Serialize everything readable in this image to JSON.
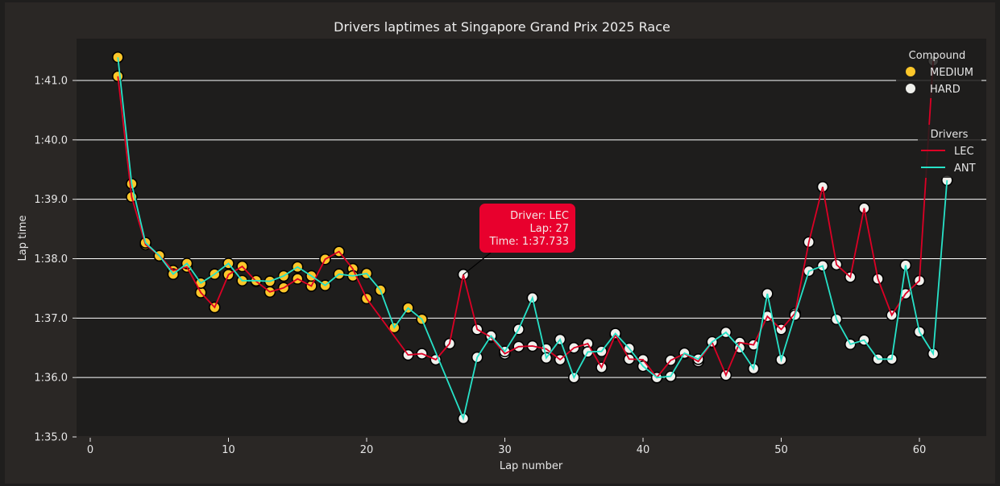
{
  "chart_data": {
    "type": "line",
    "title": "Drivers laptimes at Singapore Grand Prix 2025 Race",
    "xlabel": "Lap number",
    "ylabel": "Lap time",
    "xlim": [
      -1,
      65
    ],
    "ylim": [
      95.0,
      101.6
    ],
    "x_ticks": [
      0,
      10,
      20,
      30,
      40,
      50,
      60
    ],
    "x_tick_labels": [
      "0",
      "10",
      "20",
      "30",
      "40",
      "50",
      "60"
    ],
    "y_ticks": [
      95,
      96,
      97,
      98,
      99,
      100,
      101
    ],
    "y_tick_labels": [
      "1:35.0",
      "1:36.0",
      "1:37.0",
      "1:38.0",
      "1:39.0",
      "1:40.0",
      "1:41.0"
    ],
    "grid": "horizontal",
    "colors": {
      "background": "#282624",
      "axes_background": "#1e1d1c",
      "grid": "#ffffff",
      "text": "#e6e6e6",
      "marker_edge": "#000000"
    },
    "compound_legend": {
      "title": "Compound",
      "placement": "top-right",
      "entries": [
        {
          "label": "MEDIUM",
          "color": "#fcc72a"
        },
        {
          "label": "HARD",
          "color": "#f0f0ec"
        }
      ]
    },
    "drivers_legend": {
      "title": "Drivers",
      "placement": "right",
      "entries": [
        {
          "label": "LEC",
          "color": "#dc0025"
        },
        {
          "label": "ANT",
          "color": "#27e2c8"
        }
      ]
    },
    "series": [
      {
        "name": "LEC",
        "color": "#dc0025",
        "points": [
          {
            "lap": 2,
            "time": 101.07,
            "compound": "MEDIUM"
          },
          {
            "lap": 3,
            "time": 99.04,
            "compound": "MEDIUM"
          },
          {
            "lap": 4,
            "time": 98.24,
            "compound": "MEDIUM"
          },
          {
            "lap": 5,
            "time": 98.05,
            "compound": "MEDIUM"
          },
          {
            "lap": 6,
            "time": 97.8,
            "compound": "MEDIUM"
          },
          {
            "lap": 7,
            "time": 97.86,
            "compound": "MEDIUM"
          },
          {
            "lap": 8,
            "time": 97.43,
            "compound": "MEDIUM"
          },
          {
            "lap": 9,
            "time": 97.18,
            "compound": "MEDIUM"
          },
          {
            "lap": 10,
            "time": 97.73,
            "compound": "MEDIUM"
          },
          {
            "lap": 11,
            "time": 97.87,
            "compound": "MEDIUM"
          },
          {
            "lap": 12,
            "time": 97.62,
            "compound": "MEDIUM"
          },
          {
            "lap": 13,
            "time": 97.44,
            "compound": "MEDIUM"
          },
          {
            "lap": 14,
            "time": 97.51,
            "compound": "MEDIUM"
          },
          {
            "lap": 15,
            "time": 97.66,
            "compound": "MEDIUM"
          },
          {
            "lap": 16,
            "time": 97.54,
            "compound": "MEDIUM"
          },
          {
            "lap": 17,
            "time": 97.99,
            "compound": "MEDIUM"
          },
          {
            "lap": 18,
            "time": 98.12,
            "compound": "MEDIUM"
          },
          {
            "lap": 19,
            "time": 97.83,
            "compound": "MEDIUM"
          },
          {
            "lap": 20,
            "time": 97.33,
            "compound": "MEDIUM"
          },
          {
            "lap": 23,
            "time": 96.38,
            "compound": "HARD"
          },
          {
            "lap": 24,
            "time": 96.4,
            "compound": "HARD"
          },
          {
            "lap": 25,
            "time": 96.3,
            "compound": "HARD"
          },
          {
            "lap": 26,
            "time": 96.57,
            "compound": "HARD"
          },
          {
            "lap": 27,
            "time": 97.733,
            "compound": "HARD"
          },
          {
            "lap": 28,
            "time": 96.81,
            "compound": "HARD"
          },
          {
            "lap": 29,
            "time": 96.68,
            "compound": "HARD"
          },
          {
            "lap": 30,
            "time": 96.4,
            "compound": "HARD"
          },
          {
            "lap": 31,
            "time": 96.52,
            "compound": "HARD"
          },
          {
            "lap": 32,
            "time": 96.53,
            "compound": "HARD"
          },
          {
            "lap": 33,
            "time": 96.48,
            "compound": "HARD"
          },
          {
            "lap": 34,
            "time": 96.3,
            "compound": "HARD"
          },
          {
            "lap": 35,
            "time": 96.5,
            "compound": "HARD"
          },
          {
            "lap": 36,
            "time": 96.57,
            "compound": "HARD"
          },
          {
            "lap": 37,
            "time": 96.17,
            "compound": "HARD"
          },
          {
            "lap": 38,
            "time": 96.72,
            "compound": "HARD"
          },
          {
            "lap": 39,
            "time": 96.31,
            "compound": "HARD"
          },
          {
            "lap": 40,
            "time": 96.3,
            "compound": "HARD"
          },
          {
            "lap": 41,
            "time": 96.0,
            "compound": "HARD"
          },
          {
            "lap": 42,
            "time": 96.29,
            "compound": "HARD"
          },
          {
            "lap": 43,
            "time": 96.4,
            "compound": "HARD"
          },
          {
            "lap": 44,
            "time": 96.27,
            "compound": "HARD"
          },
          {
            "lap": 45,
            "time": 96.59,
            "compound": "HARD"
          },
          {
            "lap": 46,
            "time": 96.04,
            "compound": "HARD"
          },
          {
            "lap": 47,
            "time": 96.59,
            "compound": "HARD"
          },
          {
            "lap": 48,
            "time": 96.55,
            "compound": "HARD"
          },
          {
            "lap": 49,
            "time": 97.03,
            "compound": "HARD"
          },
          {
            "lap": 50,
            "time": 96.81,
            "compound": "HARD"
          },
          {
            "lap": 51,
            "time": 97.08,
            "compound": "HARD"
          },
          {
            "lap": 52,
            "time": 98.28,
            "compound": "HARD"
          },
          {
            "lap": 53,
            "time": 99.21,
            "compound": "HARD"
          },
          {
            "lap": 54,
            "time": 97.9,
            "compound": "HARD"
          },
          {
            "lap": 55,
            "time": 97.69,
            "compound": "HARD"
          },
          {
            "lap": 56,
            "time": 98.85,
            "compound": "HARD"
          },
          {
            "lap": 57,
            "time": 97.66,
            "compound": "HARD"
          },
          {
            "lap": 58,
            "time": 97.05,
            "compound": "HARD"
          },
          {
            "lap": 59,
            "time": 97.41,
            "compound": "HARD"
          },
          {
            "lap": 60,
            "time": 97.63,
            "compound": "HARD"
          },
          {
            "lap": 61,
            "time": 101.33,
            "compound": "HARD"
          }
        ]
      },
      {
        "name": "ANT",
        "color": "#27e2c8",
        "points": [
          {
            "lap": 2,
            "time": 101.39,
            "compound": "MEDIUM"
          },
          {
            "lap": 3,
            "time": 99.26,
            "compound": "MEDIUM"
          },
          {
            "lap": 4,
            "time": 98.27,
            "compound": "MEDIUM"
          },
          {
            "lap": 5,
            "time": 98.05,
            "compound": "MEDIUM"
          },
          {
            "lap": 6,
            "time": 97.74,
            "compound": "MEDIUM"
          },
          {
            "lap": 7,
            "time": 97.92,
            "compound": "MEDIUM"
          },
          {
            "lap": 8,
            "time": 97.59,
            "compound": "MEDIUM"
          },
          {
            "lap": 9,
            "time": 97.74,
            "compound": "MEDIUM"
          },
          {
            "lap": 10,
            "time": 97.92,
            "compound": "MEDIUM"
          },
          {
            "lap": 11,
            "time": 97.63,
            "compound": "MEDIUM"
          },
          {
            "lap": 12,
            "time": 97.63,
            "compound": "MEDIUM"
          },
          {
            "lap": 13,
            "time": 97.62,
            "compound": "MEDIUM"
          },
          {
            "lap": 14,
            "time": 97.71,
            "compound": "MEDIUM"
          },
          {
            "lap": 15,
            "time": 97.86,
            "compound": "MEDIUM"
          },
          {
            "lap": 16,
            "time": 97.71,
            "compound": "MEDIUM"
          },
          {
            "lap": 17,
            "time": 97.55,
            "compound": "MEDIUM"
          },
          {
            "lap": 18,
            "time": 97.74,
            "compound": "MEDIUM"
          },
          {
            "lap": 19,
            "time": 97.71,
            "compound": "MEDIUM"
          },
          {
            "lap": 20,
            "time": 97.75,
            "compound": "MEDIUM"
          },
          {
            "lap": 21,
            "time": 97.47,
            "compound": "MEDIUM"
          },
          {
            "lap": 22,
            "time": 96.84,
            "compound": "MEDIUM"
          },
          {
            "lap": 23,
            "time": 97.17,
            "compound": "MEDIUM"
          },
          {
            "lap": 24,
            "time": 96.98,
            "compound": "MEDIUM"
          },
          {
            "lap": 27,
            "time": 95.31,
            "compound": "HARD"
          },
          {
            "lap": 28,
            "time": 96.34,
            "compound": "HARD"
          },
          {
            "lap": 29,
            "time": 96.7,
            "compound": "HARD"
          },
          {
            "lap": 30,
            "time": 96.44,
            "compound": "HARD"
          },
          {
            "lap": 31,
            "time": 96.81,
            "compound": "HARD"
          },
          {
            "lap": 32,
            "time": 97.34,
            "compound": "HARD"
          },
          {
            "lap": 33,
            "time": 96.33,
            "compound": "HARD"
          },
          {
            "lap": 34,
            "time": 96.64,
            "compound": "HARD"
          },
          {
            "lap": 35,
            "time": 96.0,
            "compound": "HARD"
          },
          {
            "lap": 36,
            "time": 96.43,
            "compound": "HARD"
          },
          {
            "lap": 37,
            "time": 96.44,
            "compound": "HARD"
          },
          {
            "lap": 38,
            "time": 96.74,
            "compound": "HARD"
          },
          {
            "lap": 39,
            "time": 96.49,
            "compound": "HARD"
          },
          {
            "lap": 40,
            "time": 96.19,
            "compound": "HARD"
          },
          {
            "lap": 41,
            "time": 96.0,
            "compound": "HARD"
          },
          {
            "lap": 42,
            "time": 96.02,
            "compound": "HARD"
          },
          {
            "lap": 43,
            "time": 96.41,
            "compound": "HARD"
          },
          {
            "lap": 44,
            "time": 96.31,
            "compound": "HARD"
          },
          {
            "lap": 45,
            "time": 96.6,
            "compound": "HARD"
          },
          {
            "lap": 46,
            "time": 96.76,
            "compound": "HARD"
          },
          {
            "lap": 47,
            "time": 96.5,
            "compound": "HARD"
          },
          {
            "lap": 48,
            "time": 96.15,
            "compound": "HARD"
          },
          {
            "lap": 49,
            "time": 97.41,
            "compound": "HARD"
          },
          {
            "lap": 50,
            "time": 96.3,
            "compound": "HARD"
          },
          {
            "lap": 51,
            "time": 97.05,
            "compound": "HARD"
          },
          {
            "lap": 52,
            "time": 97.79,
            "compound": "HARD"
          },
          {
            "lap": 53,
            "time": 97.88,
            "compound": "HARD"
          },
          {
            "lap": 54,
            "time": 96.98,
            "compound": "HARD"
          },
          {
            "lap": 55,
            "time": 96.56,
            "compound": "HARD"
          },
          {
            "lap": 56,
            "time": 96.63,
            "compound": "HARD"
          },
          {
            "lap": 57,
            "time": 96.31,
            "compound": "HARD"
          },
          {
            "lap": 58,
            "time": 96.31,
            "compound": "HARD"
          },
          {
            "lap": 59,
            "time": 97.89,
            "compound": "HARD"
          },
          {
            "lap": 60,
            "time": 96.77,
            "compound": "HARD"
          },
          {
            "lap": 61,
            "time": 96.4,
            "compound": "HARD"
          },
          {
            "lap": 62,
            "time": 99.32,
            "compound": "HARD"
          }
        ]
      }
    ],
    "annotation": {
      "driver_line": "Driver: LEC",
      "lap_line": "Lap: 27",
      "time_line": "Time: 1:37.733",
      "target": {
        "series": "LEC",
        "lap": 27,
        "time": 97.733
      },
      "color": "#e8002d"
    }
  }
}
